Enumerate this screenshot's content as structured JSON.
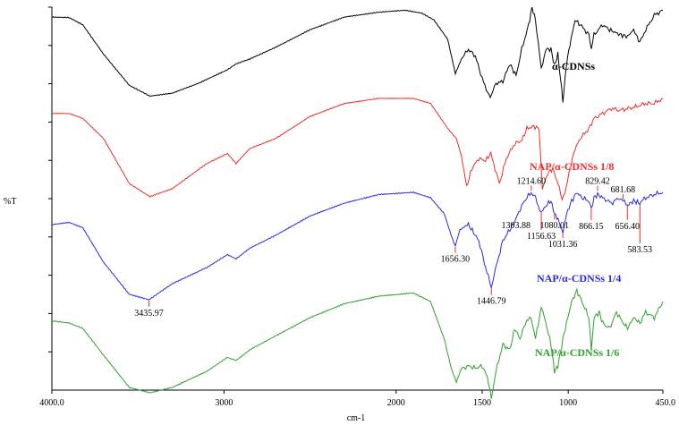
{
  "chart_data": {
    "type": "line",
    "title": "",
    "xlabel": "cm-1",
    "ylabel": "%T",
    "xlim": [
      4000.0,
      450.0
    ],
    "x_reversed": true,
    "x_ticks": [
      {
        "value": 4000,
        "label": "4000.0"
      },
      {
        "value": 3000,
        "label": "3000"
      },
      {
        "value": 2000,
        "label": "2000"
      },
      {
        "value": 1500,
        "label": "1500"
      },
      {
        "value": 1000,
        "label": "1000"
      },
      {
        "value": 450,
        "label": "450.0"
      }
    ],
    "y_ticks_count": 10,
    "grid": false,
    "series": [
      {
        "name": "α-CDNSs",
        "color": "#000000",
        "points": [
          [
            4000,
            0.12
          ],
          [
            3900,
            0.125
          ],
          [
            3820,
            0.2
          ],
          [
            3700,
            0.5
          ],
          [
            3550,
            0.82
          ],
          [
            3430,
            0.93
          ],
          [
            3300,
            0.9
          ],
          [
            3150,
            0.8
          ],
          [
            2980,
            0.66
          ],
          [
            2930,
            0.6
          ],
          [
            2850,
            0.55
          ],
          [
            2700,
            0.43
          ],
          [
            2500,
            0.25
          ],
          [
            2300,
            0.12
          ],
          [
            2100,
            0.07
          ],
          [
            1950,
            0.05
          ],
          [
            1850,
            0.08
          ],
          [
            1780,
            0.15
          ],
          [
            1700,
            0.35
          ],
          [
            1656,
            0.7
          ],
          [
            1620,
            0.55
          ],
          [
            1580,
            0.45
          ],
          [
            1540,
            0.52
          ],
          [
            1500,
            0.75
          ],
          [
            1460,
            0.93
          ],
          [
            1446,
            0.92
          ],
          [
            1420,
            0.8
          ],
          [
            1380,
            0.78
          ],
          [
            1340,
            0.6
          ],
          [
            1303,
            0.72
          ],
          [
            1270,
            0.45
          ],
          [
            1230,
            0.2
          ],
          [
            1210,
            0.02
          ],
          [
            1190,
            0.15
          ],
          [
            1157,
            0.65
          ],
          [
            1130,
            0.45
          ],
          [
            1100,
            0.45
          ],
          [
            1080,
            0.62
          ],
          [
            1060,
            0.5
          ],
          [
            1031,
            0.98
          ],
          [
            1010,
            0.6
          ],
          [
            990,
            0.4
          ],
          [
            960,
            0.15
          ],
          [
            930,
            0.2
          ],
          [
            880,
            0.3
          ],
          [
            866,
            0.45
          ],
          [
            850,
            0.3
          ],
          [
            800,
            0.2
          ],
          [
            760,
            0.25
          ],
          [
            700,
            0.3
          ],
          [
            656,
            0.32
          ],
          [
            620,
            0.25
          ],
          [
            584,
            0.38
          ],
          [
            550,
            0.25
          ],
          [
            500,
            0.1
          ],
          [
            450,
            0.05
          ]
        ]
      },
      {
        "name": "NAP/α-CDNSs 1/8",
        "color": "#e8302c",
        "points": [
          [
            4000,
            0.15
          ],
          [
            3900,
            0.15
          ],
          [
            3820,
            0.2
          ],
          [
            3700,
            0.4
          ],
          [
            3550,
            0.85
          ],
          [
            3430,
            0.98
          ],
          [
            3300,
            0.9
          ],
          [
            3100,
            0.65
          ],
          [
            2980,
            0.55
          ],
          [
            2930,
            0.65
          ],
          [
            2850,
            0.5
          ],
          [
            2700,
            0.4
          ],
          [
            2500,
            0.18
          ],
          [
            2300,
            0.05
          ],
          [
            2100,
            0.0
          ],
          [
            1900,
            0.0
          ],
          [
            1800,
            0.05
          ],
          [
            1700,
            0.3
          ],
          [
            1650,
            0.4
          ],
          [
            1620,
            0.58
          ],
          [
            1590,
            0.88
          ],
          [
            1560,
            0.7
          ],
          [
            1520,
            0.6
          ],
          [
            1480,
            0.62
          ],
          [
            1450,
            0.55
          ],
          [
            1400,
            0.85
          ],
          [
            1360,
            0.6
          ],
          [
            1310,
            0.45
          ],
          [
            1270,
            0.42
          ],
          [
            1240,
            0.3
          ],
          [
            1200,
            0.28
          ],
          [
            1170,
            0.3
          ],
          [
            1150,
            0.9
          ],
          [
            1120,
            0.75
          ],
          [
            1090,
            0.7
          ],
          [
            1060,
            0.85
          ],
          [
            1035,
            1.0
          ],
          [
            1020,
            0.95
          ],
          [
            990,
            0.7
          ],
          [
            960,
            0.5
          ],
          [
            930,
            0.4
          ],
          [
            880,
            0.3
          ],
          [
            850,
            0.2
          ],
          [
            800,
            0.15
          ],
          [
            750,
            0.1
          ],
          [
            700,
            0.12
          ],
          [
            650,
            0.1
          ],
          [
            600,
            0.08
          ],
          [
            550,
            0.05
          ],
          [
            500,
            0.05
          ],
          [
            450,
            0.0
          ]
        ]
      },
      {
        "name": "NAP/α-CDNSs 1/4",
        "color": "#2a2ae0",
        "points": [
          [
            4000,
            0.3
          ],
          [
            3900,
            0.28
          ],
          [
            3820,
            0.33
          ],
          [
            3700,
            0.65
          ],
          [
            3550,
            0.95
          ],
          [
            3436,
            1.0
          ],
          [
            3300,
            0.85
          ],
          [
            3100,
            0.7
          ],
          [
            2980,
            0.58
          ],
          [
            2930,
            0.62
          ],
          [
            2850,
            0.52
          ],
          [
            2700,
            0.4
          ],
          [
            2500,
            0.22
          ],
          [
            2300,
            0.1
          ],
          [
            2100,
            0.02
          ],
          [
            1900,
            0.0
          ],
          [
            1800,
            0.05
          ],
          [
            1720,
            0.2
          ],
          [
            1680,
            0.4
          ],
          [
            1656,
            0.5
          ],
          [
            1630,
            0.35
          ],
          [
            1580,
            0.3
          ],
          [
            1520,
            0.45
          ],
          [
            1480,
            0.7
          ],
          [
            1447,
            0.88
          ],
          [
            1420,
            0.7
          ],
          [
            1380,
            0.45
          ],
          [
            1340,
            0.35
          ],
          [
            1304,
            0.25
          ],
          [
            1270,
            0.12
          ],
          [
            1240,
            0.05
          ],
          [
            1215,
            0.0
          ],
          [
            1190,
            0.05
          ],
          [
            1157,
            0.2
          ],
          [
            1130,
            0.12
          ],
          [
            1100,
            0.08
          ],
          [
            1080,
            0.2
          ],
          [
            1060,
            0.25
          ],
          [
            1031,
            0.38
          ],
          [
            1010,
            0.2
          ],
          [
            980,
            0.08
          ],
          [
            950,
            0.0
          ],
          [
            920,
            0.05
          ],
          [
            880,
            0.08
          ],
          [
            866,
            0.15
          ],
          [
            850,
            0.05
          ],
          [
            829,
            0.02
          ],
          [
            800,
            0.05
          ],
          [
            750,
            0.1
          ],
          [
            700,
            0.05
          ],
          [
            682,
            0.08
          ],
          [
            656,
            0.12
          ],
          [
            620,
            0.08
          ],
          [
            584,
            0.1
          ],
          [
            550,
            0.05
          ],
          [
            500,
            0.02
          ],
          [
            450,
            0.0
          ]
        ]
      },
      {
        "name": "NAP/α-CDNSs 1/6",
        "color": "#2ea02e",
        "points": [
          [
            4000,
            0.28
          ],
          [
            3900,
            0.3
          ],
          [
            3820,
            0.35
          ],
          [
            3700,
            0.6
          ],
          [
            3550,
            0.9
          ],
          [
            3430,
            0.95
          ],
          [
            3300,
            0.9
          ],
          [
            3100,
            0.75
          ],
          [
            2980,
            0.62
          ],
          [
            2930,
            0.65
          ],
          [
            2850,
            0.55
          ],
          [
            2700,
            0.42
          ],
          [
            2500,
            0.25
          ],
          [
            2300,
            0.12
          ],
          [
            2100,
            0.05
          ],
          [
            1900,
            0.02
          ],
          [
            1800,
            0.1
          ],
          [
            1720,
            0.45
          ],
          [
            1680,
            0.72
          ],
          [
            1650,
            0.85
          ],
          [
            1620,
            0.72
          ],
          [
            1580,
            0.7
          ],
          [
            1540,
            0.72
          ],
          [
            1500,
            0.7
          ],
          [
            1470,
            0.8
          ],
          [
            1447,
            1.0
          ],
          [
            1420,
            0.75
          ],
          [
            1380,
            0.5
          ],
          [
            1340,
            0.55
          ],
          [
            1310,
            0.35
          ],
          [
            1280,
            0.45
          ],
          [
            1250,
            0.3
          ],
          [
            1215,
            0.25
          ],
          [
            1190,
            0.45
          ],
          [
            1157,
            0.15
          ],
          [
            1130,
            0.3
          ],
          [
            1100,
            0.5
          ],
          [
            1080,
            0.75
          ],
          [
            1060,
            0.7
          ],
          [
            1031,
            0.45
          ],
          [
            1010,
            0.3
          ],
          [
            980,
            0.1
          ],
          [
            950,
            0.0
          ],
          [
            920,
            0.1
          ],
          [
            880,
            0.25
          ],
          [
            866,
            0.55
          ],
          [
            850,
            0.25
          ],
          [
            820,
            0.2
          ],
          [
            800,
            0.3
          ],
          [
            760,
            0.35
          ],
          [
            720,
            0.2
          ],
          [
            680,
            0.3
          ],
          [
            656,
            0.35
          ],
          [
            620,
            0.25
          ],
          [
            584,
            0.3
          ],
          [
            550,
            0.2
          ],
          [
            500,
            0.25
          ],
          [
            450,
            0.1
          ]
        ]
      }
    ],
    "peak_labels": [
      {
        "text": "3435.97",
        "x": 3435.97,
        "series": 2,
        "style": "below"
      },
      {
        "text": "1656.30",
        "x": 1656.3,
        "series": 2,
        "style": "below"
      },
      {
        "text": "1446.79",
        "x": 1446.79,
        "series": 2,
        "style": "below"
      },
      {
        "text": "1303.88",
        "x": 1303.88,
        "series": 2,
        "style": "line"
      },
      {
        "text": "1214.60",
        "x": 1214.6,
        "series": 2,
        "style": "above"
      },
      {
        "text": "1156.63",
        "x": 1156.63,
        "series": 2,
        "style": "line"
      },
      {
        "text": "1080.01",
        "x": 1080.01,
        "series": 2,
        "style": "line"
      },
      {
        "text": "1031.36",
        "x": 1031.36,
        "series": 2,
        "style": "line"
      },
      {
        "text": "829.42",
        "x": 829.42,
        "series": 2,
        "style": "above"
      },
      {
        "text": "866.15",
        "x": 866.15,
        "series": 2,
        "style": "line"
      },
      {
        "text": "681.68",
        "x": 681.68,
        "series": 2,
        "style": "above"
      },
      {
        "text": "656.40",
        "x": 656.4,
        "series": 2,
        "style": "line"
      },
      {
        "text": "583.53",
        "x": 583.53,
        "series": 2,
        "style": "line"
      }
    ]
  }
}
